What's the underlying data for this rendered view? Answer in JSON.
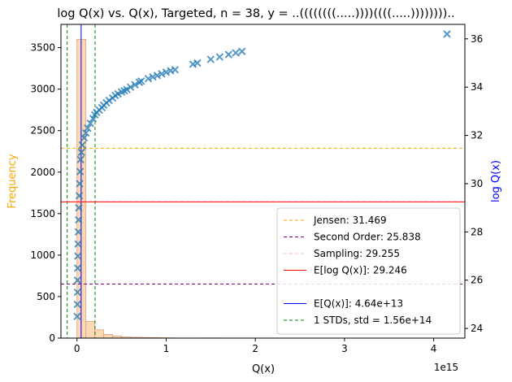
{
  "chart_data": {
    "type": "histogram+scatter",
    "title": "log Q(x) vs. Q(x), Targeted, n = 38, y = ..((((((((.....))))((((.....)))))))).. ",
    "xlabel": "Q(x)",
    "x_offset_label": "1e15",
    "ylabel_left": "Frequency",
    "ylabel_right": "log Q(x)",
    "x_axis": {
      "lim": [
        -0.18,
        4.35
      ],
      "ticks": [
        0,
        1,
        2,
        3,
        4
      ],
      "tick_labels": [
        "0",
        "1",
        "2",
        "3",
        "4"
      ]
    },
    "y_left": {
      "lim": [
        0,
        3780
      ],
      "ticks": [
        0,
        500,
        1000,
        1500,
        2000,
        2500,
        3000,
        3500
      ],
      "tick_labels": [
        "0",
        "500",
        "1000",
        "1500",
        "2000",
        "2500",
        "3000",
        "3500"
      ]
    },
    "y_right": {
      "lim": [
        23.6,
        36.6
      ],
      "ticks": [
        24,
        26,
        28,
        30,
        32,
        34,
        36
      ],
      "tick_labels": [
        "24",
        "26",
        "28",
        "30",
        "32",
        "34",
        "36"
      ]
    },
    "histogram": {
      "bin_width": 0.1,
      "bins": [
        {
          "x0": 0.0,
          "count": 3600
        },
        {
          "x0": 0.1,
          "count": 200
        },
        {
          "x0": 0.2,
          "count": 100
        },
        {
          "x0": 0.3,
          "count": 45
        },
        {
          "x0": 0.4,
          "count": 25
        },
        {
          "x0": 0.5,
          "count": 15
        },
        {
          "x0": 0.6,
          "count": 10
        },
        {
          "x0": 0.7,
          "count": 8
        },
        {
          "x0": 0.8,
          "count": 6
        },
        {
          "x0": 0.9,
          "count": 4
        },
        {
          "x0": 1.0,
          "count": 3
        },
        {
          "x0": 1.4,
          "count": 2
        },
        {
          "x0": 1.5,
          "count": 2
        }
      ]
    },
    "scatter_points": [
      [
        0.002,
        24.5
      ],
      [
        0.004,
        25.0
      ],
      [
        0.005,
        25.5
      ],
      [
        0.006,
        26.0
      ],
      [
        0.008,
        26.5
      ],
      [
        0.01,
        27.0
      ],
      [
        0.012,
        27.5
      ],
      [
        0.015,
        28.0
      ],
      [
        0.018,
        28.5
      ],
      [
        0.02,
        29.0
      ],
      [
        0.025,
        29.5
      ],
      [
        0.03,
        30.0
      ],
      [
        0.035,
        30.5
      ],
      [
        0.04,
        31.0
      ],
      [
        0.05,
        31.3
      ],
      [
        0.06,
        31.6
      ],
      [
        0.08,
        31.9
      ],
      [
        0.1,
        32.1
      ],
      [
        0.12,
        32.3
      ],
      [
        0.15,
        32.5
      ],
      [
        0.18,
        32.7
      ],
      [
        0.2,
        32.85
      ],
      [
        0.22,
        32.95
      ],
      [
        0.25,
        33.05
      ],
      [
        0.28,
        33.15
      ],
      [
        0.3,
        33.25
      ],
      [
        0.33,
        33.35
      ],
      [
        0.36,
        33.45
      ],
      [
        0.4,
        33.55
      ],
      [
        0.43,
        33.65
      ],
      [
        0.46,
        33.72
      ],
      [
        0.5,
        33.8
      ],
      [
        0.53,
        33.85
      ],
      [
        0.56,
        33.9
      ],
      [
        0.6,
        34.0
      ],
      [
        0.65,
        34.1
      ],
      [
        0.7,
        34.2
      ],
      [
        0.72,
        34.25
      ],
      [
        0.8,
        34.35
      ],
      [
        0.85,
        34.42
      ],
      [
        0.9,
        34.48
      ],
      [
        0.95,
        34.55
      ],
      [
        1.0,
        34.62
      ],
      [
        1.05,
        34.68
      ],
      [
        1.1,
        34.72
      ],
      [
        1.3,
        34.95
      ],
      [
        1.35,
        35.0
      ],
      [
        1.5,
        35.15
      ],
      [
        1.6,
        35.25
      ],
      [
        1.7,
        35.35
      ],
      [
        1.78,
        35.42
      ],
      [
        1.85,
        35.48
      ],
      [
        4.15,
        36.2
      ]
    ],
    "hlines_right_axis": [
      {
        "name": "Jensen: 31.469",
        "value": 31.469,
        "color": "#ffa500",
        "style": "dashed"
      },
      {
        "name": "Second Order: 25.838",
        "value": 25.838,
        "color": "#800080",
        "style": "dashed"
      },
      {
        "name": "Sampling: 29.255",
        "value": 29.255,
        "color": "#ffb6c1",
        "style": "dashed"
      },
      {
        "name": "E[log Q(x)]: 29.246",
        "value": 29.246,
        "color": "#ff0000",
        "style": "solid"
      }
    ],
    "vlines_x": [
      {
        "name": "E[Q(x)]: 4.64e+13",
        "value": 0.0464,
        "color": "#0000ff",
        "style": "solid"
      },
      {
        "name": "1 STDs, std = 1.56e+14",
        "values": [
          -0.11,
          0.2024
        ],
        "color": "#008000",
        "style": "dashed"
      }
    ],
    "legend_position": "lower right",
    "colors": {
      "hist_fill": "#fcd9b4",
      "hist_edge": "#e0a080",
      "scatter": "#1f77b4",
      "left_label": "#ffa500",
      "right_label": "#0000ff"
    }
  }
}
